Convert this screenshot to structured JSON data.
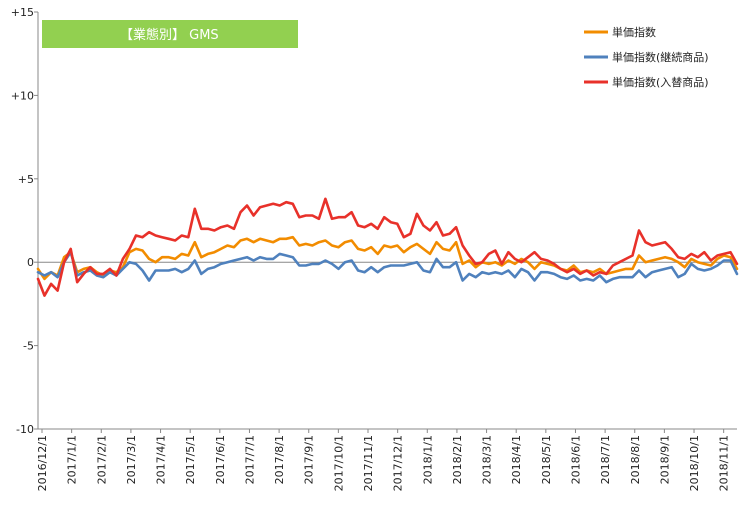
{
  "badge": {
    "label": "【業態別】 GMS",
    "color": "#92d050"
  },
  "chart_data": {
    "type": "line",
    "ylim": [
      -10,
      15
    ],
    "yticks": [
      {
        "value": 15,
        "label": "+15"
      },
      {
        "value": 10,
        "label": "+10"
      },
      {
        "value": 5,
        "label": "+5"
      },
      {
        "value": 0,
        "label": "0"
      },
      {
        "value": -5,
        "label": "-5"
      },
      {
        "value": -10,
        "label": "-10"
      }
    ],
    "x_tick_labels": [
      "2016/12/1",
      "2017/1/1",
      "2017/2/1",
      "2017/3/1",
      "2017/4/1",
      "2017/5/1",
      "2017/6/1",
      "2017/7/1",
      "2017/8/1",
      "2017/9/1",
      "2017/10/1",
      "2017/11/1",
      "2017/12/1",
      "2018/1/1",
      "2018/2/1",
      "2018/3/1",
      "2018/4/1",
      "2018/5/1",
      "2018/6/1",
      "2018/7/1",
      "2018/8/1",
      "2018/9/1",
      "2018/10/1",
      "2018/11/1"
    ],
    "legend_position": "top-right",
    "grid": false,
    "series": [
      {
        "name": "単価指数",
        "color": "#f28c00",
        "values": [
          -0.4,
          -1.0,
          -0.6,
          -0.8,
          0.3,
          0.6,
          -0.6,
          -0.4,
          -0.3,
          -0.6,
          -0.8,
          -0.5,
          -0.6,
          -0.3,
          0.6,
          0.8,
          0.7,
          0.2,
          0.0,
          0.3,
          0.3,
          0.2,
          0.5,
          0.4,
          1.2,
          0.3,
          0.5,
          0.6,
          0.8,
          1.0,
          0.9,
          1.3,
          1.4,
          1.2,
          1.4,
          1.3,
          1.2,
          1.4,
          1.4,
          1.5,
          1.0,
          1.1,
          1.0,
          1.2,
          1.3,
          1.0,
          0.9,
          1.2,
          1.3,
          0.8,
          0.7,
          0.9,
          0.5,
          1.0,
          0.9,
          1.0,
          0.6,
          0.9,
          1.1,
          0.8,
          0.5,
          1.2,
          0.8,
          0.7,
          1.2,
          -0.1,
          0.1,
          -0.3,
          0.0,
          -0.1,
          0.0,
          -0.2,
          0.1,
          -0.1,
          0.2,
          0.0,
          -0.4,
          0.0,
          -0.1,
          -0.2,
          -0.4,
          -0.5,
          -0.2,
          -0.6,
          -0.5,
          -0.6,
          -0.4,
          -0.7,
          -0.6,
          -0.5,
          -0.4,
          -0.4,
          0.4,
          0.0,
          0.1,
          0.2,
          0.3,
          0.2,
          0.0,
          -0.3,
          0.2,
          0.0,
          -0.1,
          -0.2,
          0.2,
          0.4,
          0.3,
          -0.4
        ]
      },
      {
        "name": "単価指数(継続商品)",
        "color": "#4f81bd",
        "values": [
          -0.6,
          -0.8,
          -0.6,
          -0.9,
          0.0,
          0.6,
          -0.8,
          -0.6,
          -0.5,
          -0.8,
          -0.9,
          -0.6,
          -0.8,
          -0.4,
          0.0,
          -0.1,
          -0.5,
          -1.1,
          -0.5,
          -0.5,
          -0.5,
          -0.4,
          -0.6,
          -0.4,
          0.1,
          -0.7,
          -0.4,
          -0.3,
          -0.1,
          0.0,
          0.1,
          0.2,
          0.3,
          0.1,
          0.3,
          0.2,
          0.2,
          0.5,
          0.4,
          0.3,
          -0.2,
          -0.2,
          -0.1,
          -0.1,
          0.1,
          -0.1,
          -0.4,
          0.0,
          0.1,
          -0.5,
          -0.6,
          -0.3,
          -0.6,
          -0.3,
          -0.2,
          -0.2,
          -0.2,
          -0.1,
          0.0,
          -0.5,
          -0.6,
          0.2,
          -0.3,
          -0.3,
          0.0,
          -1.1,
          -0.7,
          -0.9,
          -0.6,
          -0.7,
          -0.6,
          -0.7,
          -0.5,
          -0.9,
          -0.4,
          -0.6,
          -1.1,
          -0.6,
          -0.6,
          -0.7,
          -0.9,
          -1.0,
          -0.8,
          -1.1,
          -1.0,
          -1.1,
          -0.8,
          -1.2,
          -1.0,
          -0.9,
          -0.9,
          -0.9,
          -0.5,
          -0.9,
          -0.6,
          -0.5,
          -0.4,
          -0.3,
          -0.9,
          -0.7,
          -0.1,
          -0.4,
          -0.5,
          -0.4,
          -0.2,
          0.1,
          0.1,
          -0.7
        ]
      },
      {
        "name": "単価指数(入替商品)",
        "color": "#e8312a",
        "values": [
          -1.0,
          -2.0,
          -1.3,
          -1.7,
          0.0,
          0.8,
          -1.2,
          -0.7,
          -0.3,
          -0.7,
          -0.7,
          -0.4,
          -0.8,
          0.2,
          0.8,
          1.6,
          1.5,
          1.8,
          1.6,
          1.5,
          1.4,
          1.3,
          1.6,
          1.5,
          3.2,
          2.0,
          2.0,
          1.9,
          2.1,
          2.2,
          2.0,
          3.0,
          3.4,
          2.8,
          3.3,
          3.4,
          3.5,
          3.4,
          3.6,
          3.5,
          2.7,
          2.8,
          2.8,
          2.6,
          3.8,
          2.6,
          2.7,
          2.7,
          3.0,
          2.2,
          2.1,
          2.3,
          2.0,
          2.7,
          2.4,
          2.3,
          1.5,
          1.7,
          2.9,
          2.2,
          1.9,
          2.4,
          1.6,
          1.7,
          2.1,
          1.0,
          0.4,
          -0.1,
          0.0,
          0.5,
          0.7,
          -0.1,
          0.6,
          0.2,
          0.0,
          0.3,
          0.6,
          0.2,
          0.1,
          -0.1,
          -0.4,
          -0.6,
          -0.4,
          -0.7,
          -0.5,
          -0.8,
          -0.6,
          -0.7,
          -0.2,
          0.0,
          0.2,
          0.4,
          1.9,
          1.2,
          1.0,
          1.1,
          1.2,
          0.8,
          0.3,
          0.2,
          0.5,
          0.3,
          0.6,
          0.1,
          0.4,
          0.5,
          0.6,
          -0.1
        ]
      }
    ]
  }
}
